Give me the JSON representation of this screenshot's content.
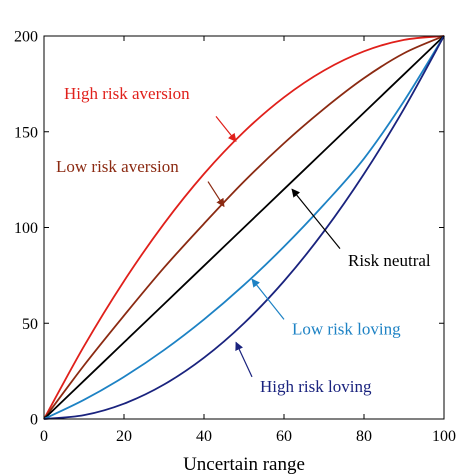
{
  "chart_data": {
    "type": "line",
    "title": "",
    "xlabel": "Uncertain range",
    "ylabel": "",
    "xlim": [
      0,
      100
    ],
    "ylim": [
      0,
      200
    ],
    "xticks": [
      0,
      20,
      40,
      60,
      80,
      100
    ],
    "yticks": [
      0,
      50,
      100,
      150,
      200
    ],
    "grid": false,
    "x": [
      0,
      10,
      20,
      30,
      40,
      50,
      60,
      70,
      80,
      90,
      100
    ],
    "series": [
      {
        "key": "high-risk-aversion",
        "color": "#e0201b",
        "values": [
          0,
          38,
          72,
          102,
          128,
          150,
          168,
          182,
          192,
          198,
          200
        ]
      },
      {
        "key": "low-risk-aversion",
        "color": "#8b2a12",
        "values": [
          0,
          28,
          54,
          79,
          102,
          124,
          144,
          162,
          178,
          191,
          200
        ]
      },
      {
        "key": "risk-neutral",
        "color": "#000000",
        "values": [
          0,
          20,
          40,
          60,
          80,
          100,
          120,
          140,
          160,
          180,
          200
        ]
      },
      {
        "key": "low-risk-loving",
        "color": "#1d82c4",
        "values": [
          0,
          10,
          22,
          36,
          52,
          70,
          90,
          112,
          136,
          166,
          200
        ]
      },
      {
        "key": "high-risk-loving",
        "color": "#1a237e",
        "values": [
          0,
          2,
          8,
          18,
          32,
          50,
          72,
          98,
          128,
          162,
          200
        ]
      }
    ],
    "annotations": [
      {
        "key": "high-risk-aversion",
        "text": "High risk aversion",
        "color": "#e0201b",
        "text_at": [
          5,
          167
        ],
        "arrow_from": [
          43,
          158
        ],
        "arrow_to": [
          48,
          145
        ]
      },
      {
        "key": "low-risk-aversion",
        "text": "Low risk aversion",
        "color": "#8b2a12",
        "text_at": [
          3,
          129
        ],
        "arrow_from": [
          41,
          124
        ],
        "arrow_to": [
          45,
          111
        ]
      },
      {
        "key": "risk-neutral",
        "text": "Risk neutral",
        "color": "#000000",
        "text_at": [
          76,
          80
        ],
        "arrow_from": [
          74,
          89
        ],
        "arrow_to": [
          62,
          120
        ]
      },
      {
        "key": "low-risk-loving",
        "text": "Low risk loving",
        "color": "#1d82c4",
        "text_at": [
          62,
          44
        ],
        "arrow_from": [
          60,
          52
        ],
        "arrow_to": [
          52,
          73
        ]
      },
      {
        "key": "high-risk-loving",
        "text": "High risk loving",
        "color": "#1a237e",
        "text_at": [
          54,
          14
        ],
        "arrow_from": [
          52,
          22
        ],
        "arrow_to": [
          48,
          40
        ]
      }
    ]
  }
}
